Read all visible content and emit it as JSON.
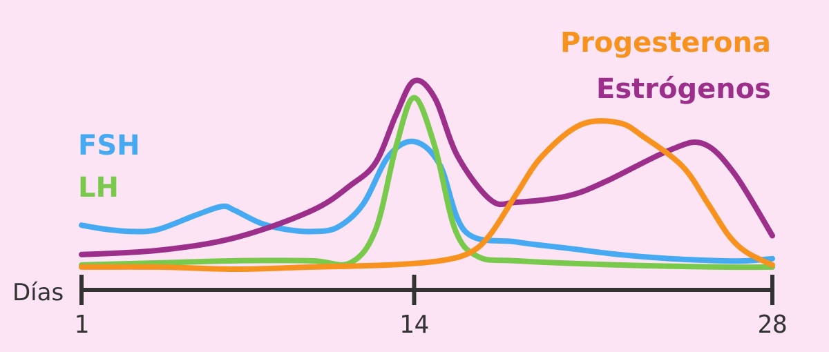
{
  "chart_data": {
    "type": "line",
    "xlabel": "Días",
    "x_ticks": [
      1,
      14,
      28
    ],
    "xlim": [
      1,
      28
    ],
    "ylim": [
      0,
      100
    ],
    "grid": false,
    "legend_placement": "inline",
    "series": [
      {
        "name": "FSH",
        "color": "#45aaf2",
        "x": [
          1,
          2,
          3,
          4,
          5.5,
          6.5,
          7,
          8,
          9,
          10,
          11,
          12,
          13,
          14,
          15,
          16,
          18,
          20,
          22,
          24,
          26,
          27,
          28
        ],
        "y": [
          22,
          20,
          19,
          20,
          27,
          31,
          29,
          23,
          20,
          19,
          21,
          32,
          55,
          62,
          51,
          19,
          14,
          11,
          8,
          6,
          5,
          5,
          6
        ]
      },
      {
        "name": "LH",
        "color": "#79c94d",
        "x": [
          1,
          4,
          7,
          10,
          11.5,
          12.5,
          13.3,
          14,
          14.8,
          15.6,
          16.5,
          18,
          22,
          26,
          28
        ],
        "y": [
          3,
          4,
          5,
          5,
          4,
          20,
          60,
          83,
          60,
          20,
          7,
          5,
          3,
          2,
          2
        ]
      },
      {
        "name": "Estrógenos",
        "color": "#9b2f8a",
        "x": [
          1,
          4,
          7,
          10,
          11.5,
          12.5,
          13.3,
          14,
          14.8,
          15.7,
          17,
          18,
          20,
          21.5,
          24,
          25.3,
          26.5,
          28
        ],
        "y": [
          8,
          10,
          16,
          29,
          41,
          52,
          75,
          91,
          83,
          55,
          34,
          33,
          36,
          43,
          58,
          61,
          47,
          17
        ]
      },
      {
        "name": "Progesterona",
        "color": "#f7921e",
        "x": [
          1,
          4,
          7,
          10,
          13,
          15,
          16.2,
          17,
          18,
          19,
          20.5,
          22,
          23,
          24.5,
          25.5,
          26.3,
          27,
          28
        ],
        "y": [
          2,
          2,
          1,
          2,
          3,
          5,
          9,
          18,
          37,
          55,
          70,
          71,
          64,
          50,
          32,
          17,
          9,
          3
        ]
      }
    ]
  },
  "labels": {
    "progesterona": "Progesterona",
    "estrogenos": "Estrógenos",
    "fsh": "FSH",
    "lh": "LH"
  }
}
